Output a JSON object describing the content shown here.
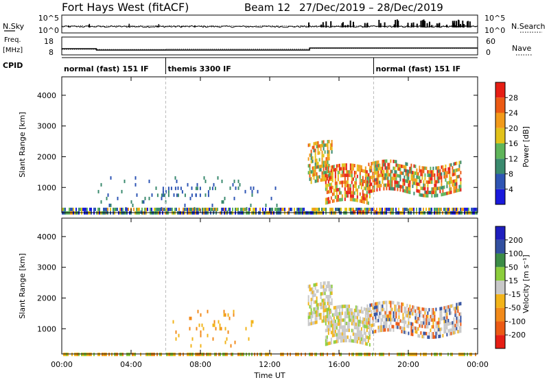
{
  "header": {
    "station": "Fort Hays West (fitACF)",
    "beam": "Beam 12",
    "date_range": "27/Dec/2019 – 28/Dec/2019"
  },
  "noise_panel": {
    "left_label": "N.Sky",
    "right_label": "N.Search",
    "ticks_left": [
      "10^5",
      "10^0"
    ],
    "ticks_right": [
      "10^5",
      "10^0"
    ]
  },
  "freq_panel": {
    "left_label_1": "Freq.",
    "left_label_2": "[MHz]",
    "ticks_left": [
      "18",
      "8"
    ],
    "right_label": "Nave",
    "ticks_right": [
      "60",
      "0"
    ]
  },
  "cpid_panel": {
    "label": "CPID",
    "segments": [
      {
        "start_hour": 0,
        "end_hour": 6,
        "text": "normal (fast) 151 IF"
      },
      {
        "start_hour": 6,
        "end_hour": 18,
        "text": "themis 3300 IF"
      },
      {
        "start_hour": 18,
        "end_hour": 24,
        "text": "normal (fast) 151 IF"
      }
    ]
  },
  "chart_data": [
    {
      "type": "heatmap",
      "name": "power",
      "ylabel": "Slant Range [km]",
      "ylim": [
        180,
        4600
      ],
      "yticks": [
        1000,
        2000,
        3000,
        4000
      ],
      "xlim": [
        0,
        24
      ],
      "colorbar": {
        "label": "Power [dB]",
        "tick_labels": [
          "4",
          "8",
          "12",
          "16",
          "20",
          "24",
          "28"
        ],
        "colors": [
          "#1a1adc",
          "#2e55b4",
          "#3a8a6e",
          "#5fb55a",
          "#e2c21a",
          "#f29a1a",
          "#ec5a14",
          "#e61e14"
        ]
      },
      "bands": [
        {
          "t0": 0.0,
          "t1": 24.0,
          "r0": 230,
          "r1": 400,
          "density": 0.75,
          "colors": [
            "#1a1adc",
            "#2e55b4",
            "#3a8a6e",
            "#5fb55a",
            "#e2c21a",
            "#f29a1a"
          ]
        },
        {
          "t0": 14.2,
          "t1": 15.6,
          "r0": 1200,
          "r1": 2500,
          "density": 0.6,
          "colors": [
            "#3a8a6e",
            "#5fb55a",
            "#e2c21a",
            "#f29a1a",
            "#ec5a14"
          ]
        },
        {
          "t0": 15.2,
          "t1": 17.8,
          "r0": 550,
          "r1": 1700,
          "density": 0.7,
          "colors": [
            "#5fb55a",
            "#e2c21a",
            "#f29a1a",
            "#ec5a14",
            "#e61e14"
          ]
        },
        {
          "t0": 17.6,
          "t1": 23.0,
          "r0": 900,
          "r1": 1900,
          "density": 0.65,
          "colors": [
            "#3a8a6e",
            "#5fb55a",
            "#e2c21a",
            "#f29a1a",
            "#ec5a14",
            "#e61e14"
          ]
        },
        {
          "t0": 16.8,
          "t1": 18.2,
          "r0": 150,
          "r1": 350,
          "density": 0.5,
          "colors": [
            "#f29a1a",
            "#ec5a14",
            "#e61e14"
          ]
        },
        {
          "t0": 5.5,
          "t1": 9.0,
          "r0": 800,
          "r1": 1100,
          "density": 0.15,
          "colors": [
            "#2e55b4",
            "#3a8a6e"
          ]
        },
        {
          "t0": 2.0,
          "t1": 12.5,
          "r0": 250,
          "r1": 1400,
          "density": 0.04,
          "colors": [
            "#2e55b4",
            "#3a8a6e"
          ]
        }
      ]
    },
    {
      "type": "heatmap",
      "name": "velocity",
      "ylabel": "Slant Range [km]",
      "ylim": [
        180,
        4600
      ],
      "yticks": [
        1000,
        2000,
        3000,
        4000
      ],
      "xlim": [
        0,
        24
      ],
      "xticks": [
        "00:00",
        "04:00",
        "08:00",
        "12:00",
        "16:00",
        "20:00",
        "00:00"
      ],
      "xlabel": "Time UT",
      "colorbar": {
        "label": "Velocity [m s⁻¹]",
        "tick_labels": [
          "-200",
          "-100",
          "-50",
          "-15",
          "15",
          "50",
          "100",
          "200"
        ],
        "colors": [
          "#e61e14",
          "#ec5a14",
          "#f28a1a",
          "#f2b41a",
          "#c8c8c8",
          "#8ccd3c",
          "#3c8c46",
          "#3250a0",
          "#1e1ebe"
        ]
      },
      "bands": [
        {
          "t0": 0.0,
          "t1": 24.0,
          "r0": 220,
          "r1": 330,
          "density": 0.6,
          "colors": [
            "#f2b41a",
            "#f28a1a",
            "#8ccd3c"
          ]
        },
        {
          "t0": 14.2,
          "t1": 15.6,
          "r0": 1200,
          "r1": 2500,
          "density": 0.6,
          "colors": [
            "#c8c8c8",
            "#c8c8c8",
            "#c8c8c8",
            "#8ccd3c",
            "#f2b41a"
          ]
        },
        {
          "t0": 15.2,
          "t1": 17.8,
          "r0": 550,
          "r1": 1700,
          "density": 0.7,
          "colors": [
            "#c8c8c8",
            "#c8c8c8",
            "#c8c8c8",
            "#f2b41a",
            "#8ccd3c"
          ]
        },
        {
          "t0": 17.6,
          "t1": 23.0,
          "r0": 900,
          "r1": 1900,
          "density": 0.65,
          "colors": [
            "#c8c8c8",
            "#c8c8c8",
            "#c8c8c8",
            "#f2b41a",
            "#ec5a14",
            "#3250a0"
          ]
        },
        {
          "t0": 6.0,
          "t1": 11.0,
          "r0": 500,
          "r1": 1700,
          "density": 0.05,
          "colors": [
            "#f28a1a",
            "#f2b41a"
          ]
        }
      ]
    }
  ]
}
